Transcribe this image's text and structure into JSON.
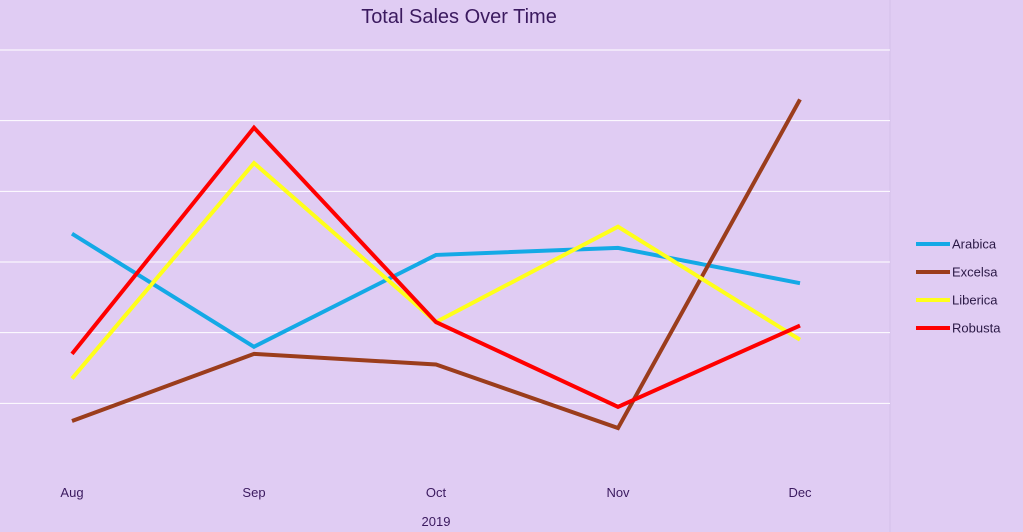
{
  "chart_data": {
    "type": "line",
    "title": "Total Sales Over Time",
    "xlabel": "2019",
    "ylabel": "",
    "categories": [
      "Aug",
      "Sep",
      "Oct",
      "Nov",
      "Dec"
    ],
    "ylim": [
      0,
      6
    ],
    "grid": true,
    "legend_position": "right",
    "series": [
      {
        "name": "Arabica",
        "color": "#14a9e6",
        "values": [
          3.4,
          1.8,
          3.1,
          3.2,
          2.7
        ]
      },
      {
        "name": "Excelsa",
        "color": "#9b3d1c",
        "values": [
          0.75,
          1.7,
          1.55,
          0.65,
          5.3
        ]
      },
      {
        "name": "Liberica",
        "color": "#ffff1a",
        "values": [
          1.35,
          4.4,
          2.15,
          3.5,
          1.9
        ]
      },
      {
        "name": "Robusta",
        "color": "#ff0000",
        "values": [
          1.7,
          4.9,
          2.15,
          0.95,
          2.1
        ]
      }
    ]
  }
}
